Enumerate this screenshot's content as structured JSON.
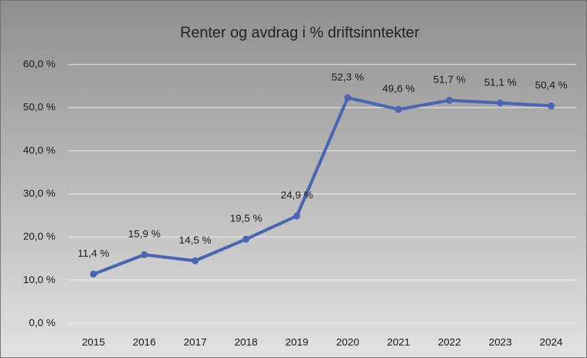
{
  "chart_data": {
    "type": "line",
    "title": "Renter og avdrag i % driftsinntekter",
    "categories": [
      "2015",
      "2016",
      "2017",
      "2018",
      "2019",
      "2020",
      "2021",
      "2022",
      "2023",
      "2024"
    ],
    "series": [
      {
        "name": "Renter og avdrag i % driftsinntekter",
        "color": "#4a66b0",
        "values": [
          11.4,
          15.9,
          14.5,
          19.5,
          24.9,
          52.3,
          49.6,
          51.7,
          51.1,
          50.4
        ],
        "value_labels": [
          "11,4 %",
          "15,9 %",
          "14,5 %",
          "19,5 %",
          "24,9 %",
          "52,3 %",
          "49,6 %",
          "51,7 %",
          "51,1 %",
          "50,4 %"
        ]
      }
    ],
    "ylim": [
      0,
      60
    ],
    "yticks": [
      {
        "value": 0,
        "label": "0,0 %"
      },
      {
        "value": 10,
        "label": "10,0 %"
      },
      {
        "value": 20,
        "label": "20,0 %"
      },
      {
        "value": 30,
        "label": "30,0 %"
      },
      {
        "value": 40,
        "label": "40,0 %"
      },
      {
        "value": 50,
        "label": "50,0 %"
      },
      {
        "value": 60,
        "label": "60,0 %"
      }
    ],
    "grid": true
  }
}
